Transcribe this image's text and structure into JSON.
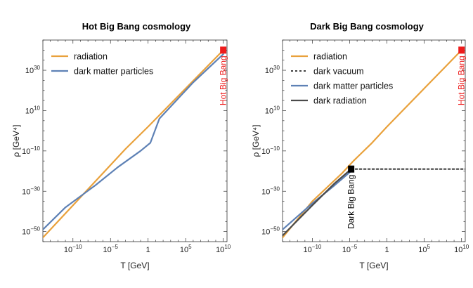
{
  "chart_data": [
    {
      "type": "line",
      "title": "Hot Big Bang cosmology",
      "xlabel": "T [GeV]",
      "ylabel": "ρ [GeV⁴]",
      "xscale": "log",
      "yscale": "log",
      "xlim_log10": [
        -14,
        10.5
      ],
      "ylim_log10": [
        -55,
        45
      ],
      "xticks": [
        {
          "v": -10,
          "t": "10−10"
        },
        {
          "v": -5,
          "t": "10−5"
        },
        {
          "v": 0,
          "t": "1"
        },
        {
          "v": 5,
          "t": "105"
        },
        {
          "v": 10,
          "t": "1010"
        }
      ],
      "yticks": [
        {
          "v": -50,
          "t": "10−50"
        },
        {
          "v": -30,
          "t": "10−30"
        },
        {
          "v": -10,
          "t": "10−10"
        },
        {
          "v": 10,
          "t": "1010"
        },
        {
          "v": 30,
          "t": "1030"
        }
      ],
      "legend_position": "top-left",
      "series": [
        {
          "name": "radiation",
          "color": "#E9A13B",
          "width": 2.2,
          "x_log10": [
            -14,
            -7,
            -3,
            0,
            5,
            10
          ],
          "y_log10": [
            -53,
            -25,
            -9,
            2,
            21,
            40
          ]
        },
        {
          "name": "dark matter particles",
          "color": "#5E81B5",
          "width": 2.2,
          "x_log10": [
            -14,
            -11,
            -7,
            -4,
            -1,
            0.3,
            0.8,
            1.5,
            3,
            6,
            10
          ],
          "y_log10": [
            -49,
            -38,
            -27,
            -18,
            -10,
            -6,
            -1,
            6,
            12,
            24,
            38
          ]
        }
      ],
      "annotations": [
        {
          "text": "Hot Big Bang",
          "color": "#EE1C1C",
          "x_log10": 10,
          "y_log10": 40
        }
      ]
    },
    {
      "type": "line",
      "title": "Dark Big Bang cosmology",
      "xlabel": "T [GeV]",
      "ylabel": "ρ [GeV⁴]",
      "xscale": "log",
      "yscale": "log",
      "xlim_log10": [
        -14,
        10.5
      ],
      "ylim_log10": [
        -55,
        45
      ],
      "xticks": [
        {
          "v": -10,
          "t": "10−10"
        },
        {
          "v": -5,
          "t": "10−5"
        },
        {
          "v": 0,
          "t": "1"
        },
        {
          "v": 5,
          "t": "105"
        },
        {
          "v": 10,
          "t": "1010"
        }
      ],
      "yticks": [
        {
          "v": -50,
          "t": "10−50"
        },
        {
          "v": -30,
          "t": "10−30"
        },
        {
          "v": -10,
          "t": "10−10"
        },
        {
          "v": 10,
          "t": "1010"
        },
        {
          "v": 30,
          "t": "1030"
        }
      ],
      "legend_position": "top-left",
      "series": [
        {
          "name": "radiation",
          "color": "#E9A13B",
          "width": 2.2,
          "x_log10": [
            -14,
            -10,
            -6,
            -4.5,
            -2,
            0,
            5,
            10
          ],
          "y_log10": [
            -53,
            -35,
            -21,
            -15,
            -6,
            2,
            21,
            40
          ]
        },
        {
          "name": "dark vacuum",
          "color": "#000000",
          "width": 1.6,
          "dash": "3,3",
          "x_log10": [
            -4.8,
            10.5
          ],
          "y_log10": [
            -19,
            -19
          ]
        },
        {
          "name": "dark matter particles",
          "color": "#5E81B5",
          "width": 2.2,
          "x_log10": [
            -14,
            -10,
            -7,
            -4.8
          ],
          "y_log10": [
            -49,
            -36,
            -27,
            -20
          ]
        },
        {
          "name": "dark radiation",
          "color": "#4A4A4A",
          "width": 2.2,
          "x_log10": [
            -14,
            -10,
            -7,
            -4.8
          ],
          "y_log10": [
            -52,
            -37,
            -26,
            -19
          ]
        }
      ],
      "annotations": [
        {
          "text": "Hot Big Bang",
          "color": "#EE1C1C",
          "x_log10": 10,
          "y_log10": 40
        },
        {
          "text": "Dark Big Bang",
          "color": "#000000",
          "x_log10": -4.8,
          "y_log10": -19
        }
      ]
    }
  ]
}
